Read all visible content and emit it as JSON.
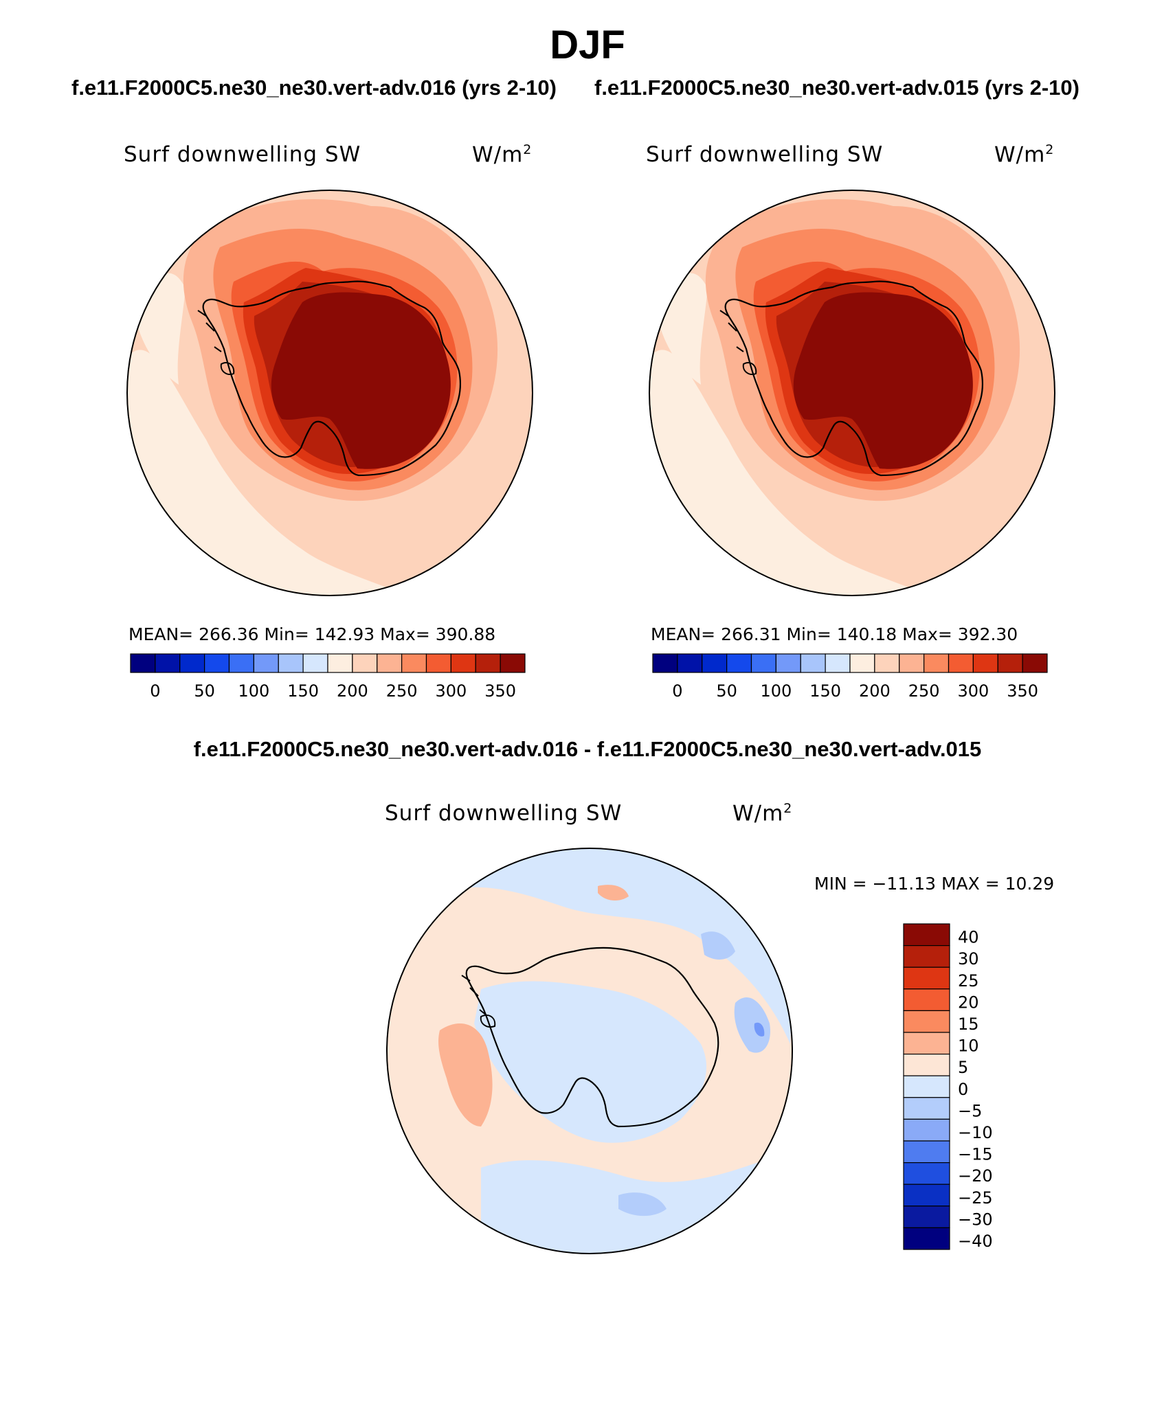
{
  "figure": {
    "title": "DJF",
    "case_left": "f.e11.F2000C5.ne30_ne30.vert-adv.016 (yrs 2-10)",
    "case_right": "f.e11.F2000C5.ne30_ne30.vert-adv.015 (yrs 2-10)",
    "diff_title": "f.e11.F2000C5.ne30_ne30.vert-adv.016 - f.e11.F2000C5.ne30_ne30.vert-adv.015"
  },
  "panels": [
    {
      "variable": "Surf downwelling SW",
      "units": "W/m",
      "units_sup": "2",
      "stats": "MEAN= 266.36   Min= 142.93   Max= 390.88"
    },
    {
      "variable": "Surf downwelling SW",
      "units": "W/m",
      "units_sup": "2",
      "stats": "MEAN= 266.31   Min= 140.18   Max= 392.30"
    },
    {
      "variable": "Surf downwelling SW",
      "units": "W/m",
      "units_sup": "2",
      "stats": "MIN = −11.13 MAX =  10.29"
    }
  ],
  "colorbar_abs": {
    "colors": [
      "#00007f",
      "#0012a8",
      "#0029cc",
      "#1449ec",
      "#3a6ff5",
      "#7399f9",
      "#a8c5fb",
      "#d6e7fd",
      "#fdeee0",
      "#fdd3bb",
      "#fcb393",
      "#fa8a5f",
      "#f35c32",
      "#de3613",
      "#b5200b",
      "#8a0a05"
    ],
    "tick_labels": [
      "0",
      "50",
      "100",
      "150",
      "200",
      "250",
      "300",
      "350"
    ]
  },
  "colorbar_diff": {
    "colors": [
      "#8a0a05",
      "#b5200b",
      "#de3613",
      "#f35c32",
      "#fa8a5f",
      "#fcb393",
      "#fde6d6",
      "#d6e7fd",
      "#b3cdfb",
      "#8aaaf7",
      "#4f7cf0",
      "#1f4fe0",
      "#0a30c4",
      "#0a1aa0",
      "#00007f"
    ],
    "tick_labels": [
      "40",
      "30",
      "25",
      "20",
      "15",
      "10",
      "5",
      "0",
      "−5",
      "−10",
      "−15",
      "−20",
      "−25",
      "−30",
      "−40"
    ]
  }
}
